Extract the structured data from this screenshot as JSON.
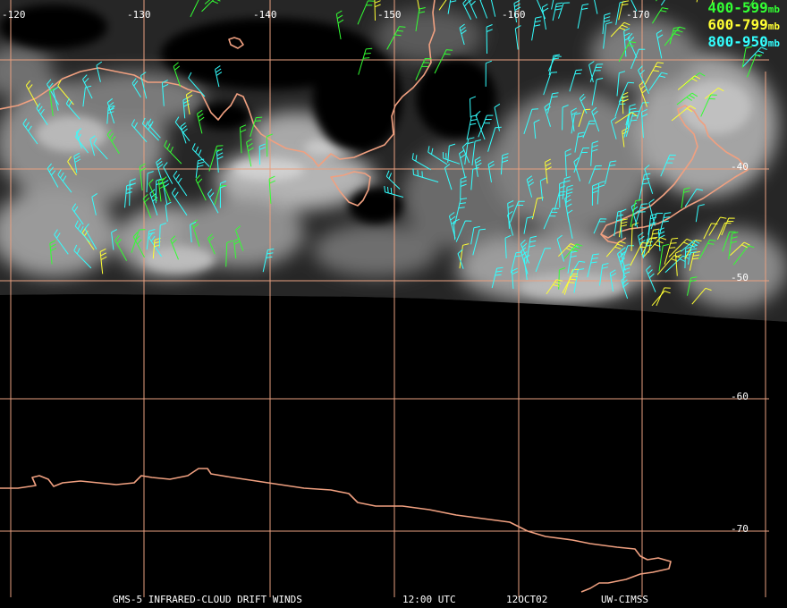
{
  "map": {
    "longitude_labels": [
      "-120",
      "-130",
      "-140",
      "-150",
      "-160",
      "-170"
    ],
    "latitude_labels": [
      "-40",
      "-50",
      "-60",
      "-70"
    ]
  },
  "legend": [
    {
      "range": "400-599",
      "unit": "mb",
      "color": "#33ff33"
    },
    {
      "range": "600-799",
      "unit": "mb",
      "color": "#ffff33"
    },
    {
      "range": "800-950",
      "unit": "mb",
      "color": "#33ffff"
    }
  ],
  "footer": {
    "product": "GMS-5 INFRARED-CLOUD DRIFT WINDS",
    "time": "12:00 UTC",
    "date": "12OCT02",
    "source": "UW-CIMSS"
  },
  "colors": {
    "grid": "#e8a080",
    "coastline": "#f0a080",
    "background": "#000000",
    "text": "#ffffff"
  }
}
